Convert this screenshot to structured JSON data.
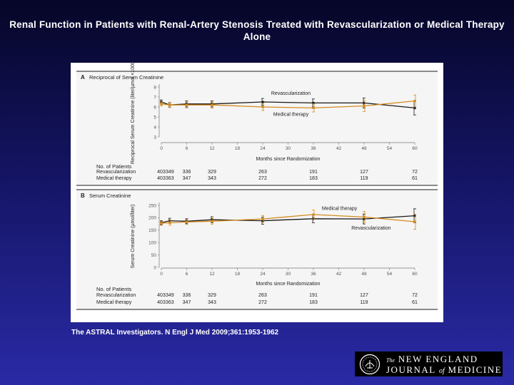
{
  "slide": {
    "title": "Renal Function in Patients with Renal-Artery Stenosis Treated with Revascularization or Medical Therapy Alone",
    "citation": "The ASTRAL Investigators. N Engl J Med 2009;361:1953-1962"
  },
  "logo": {
    "the": "The",
    "line1": "NEW ENGLAND",
    "line2_a": "JOURNAL",
    "line2_of": "of",
    "line2_b": "MEDICINE"
  },
  "colors": {
    "revascularization": "#1a1a1a",
    "medical": "#d48a1e",
    "panel_bg": "#f5f5f5",
    "divider": "#1a1a1a"
  },
  "chart_data": [
    {
      "type": "line",
      "panel_label": "A",
      "title": "Reciprocal of Serum Creatinine",
      "ylabel": "Reciprocal Serum Creatinine (liter/µmol ×1000)",
      "xlabel": "Months since Randomization",
      "x_ticks": [
        0,
        6,
        12,
        18,
        24,
        30,
        36,
        42,
        48,
        54,
        60
      ],
      "y_ticks": [
        3,
        4,
        5,
        6,
        7,
        8
      ],
      "ylim": [
        3,
        8
      ],
      "series": [
        {
          "name": "Revascularization",
          "x": [
            0,
            2,
            6,
            12,
            24,
            36,
            48,
            60
          ],
          "y": [
            6.5,
            6.2,
            6.3,
            6.3,
            6.5,
            6.4,
            6.4,
            5.9
          ],
          "err": [
            0.2,
            0.25,
            0.3,
            0.3,
            0.35,
            0.4,
            0.5,
            0.7
          ]
        },
        {
          "name": "Medical therapy",
          "x": [
            0,
            2,
            6,
            12,
            24,
            36,
            48,
            60
          ],
          "y": [
            6.3,
            6.2,
            6.2,
            6.2,
            6.0,
            5.9,
            6.1,
            6.6
          ],
          "err": [
            0.2,
            0.25,
            0.3,
            0.3,
            0.35,
            0.4,
            0.55,
            0.6
          ]
        }
      ],
      "annotations": [
        {
          "text": "Revascularization",
          "x": 26,
          "y": 7.2
        },
        {
          "text": "Medical therapy",
          "x": 26.5,
          "y": 5.1
        }
      ],
      "patients": {
        "header": "No. of Patients",
        "rows": [
          {
            "label": "Revascularization",
            "values": [
              "403",
              "349",
              "336",
              "329",
              "263",
              "191",
              "127",
              "72"
            ]
          },
          {
            "label": "Medical therapy",
            "values": [
              "403",
              "363",
              "347",
              "343",
              "272",
              "183",
              "119",
              "61"
            ]
          }
        ],
        "x": [
          0,
          2,
          6,
          12,
          24,
          36,
          48,
          60
        ]
      }
    },
    {
      "type": "line",
      "panel_label": "B",
      "title": "Serum Creatinine",
      "ylabel": "Serum Creatinine (µmol/liter)",
      "xlabel": "Months since Randomization",
      "x_ticks": [
        0,
        6,
        12,
        18,
        24,
        30,
        36,
        42,
        48,
        54,
        60
      ],
      "y_ticks": [
        0,
        50,
        100,
        150,
        200,
        250
      ],
      "ylim": [
        0,
        250
      ],
      "series": [
        {
          "name": "Revascularization",
          "x": [
            0,
            2,
            6,
            12,
            24,
            36,
            48,
            60
          ],
          "y": [
            180,
            188,
            186,
            192,
            188,
            196,
            195,
            208
          ],
          "err": [
            8,
            10,
            10,
            12,
            14,
            16,
            20,
            28
          ]
        },
        {
          "name": "Medical therapy",
          "x": [
            0,
            2,
            6,
            12,
            24,
            36,
            48,
            60
          ],
          "y": [
            178,
            180,
            183,
            186,
            195,
            213,
            203,
            184
          ],
          "err": [
            8,
            10,
            10,
            12,
            14,
            18,
            22,
            30
          ]
        }
      ],
      "annotations": [
        {
          "text": "Medical therapy",
          "x": 38,
          "y": 232
        },
        {
          "text": "Revascularization",
          "x": 45,
          "y": 152
        }
      ],
      "patients": {
        "header": "No. of Patients",
        "rows": [
          {
            "label": "Revascularization",
            "values": [
              "403",
              "349",
              "336",
              "329",
              "263",
              "191",
              "127",
              "72"
            ]
          },
          {
            "label": "Medical therapy",
            "values": [
              "403",
              "363",
              "347",
              "343",
              "272",
              "183",
              "119",
              "61"
            ]
          }
        ],
        "x": [
          0,
          2,
          6,
          12,
          24,
          36,
          48,
          60
        ]
      }
    }
  ]
}
